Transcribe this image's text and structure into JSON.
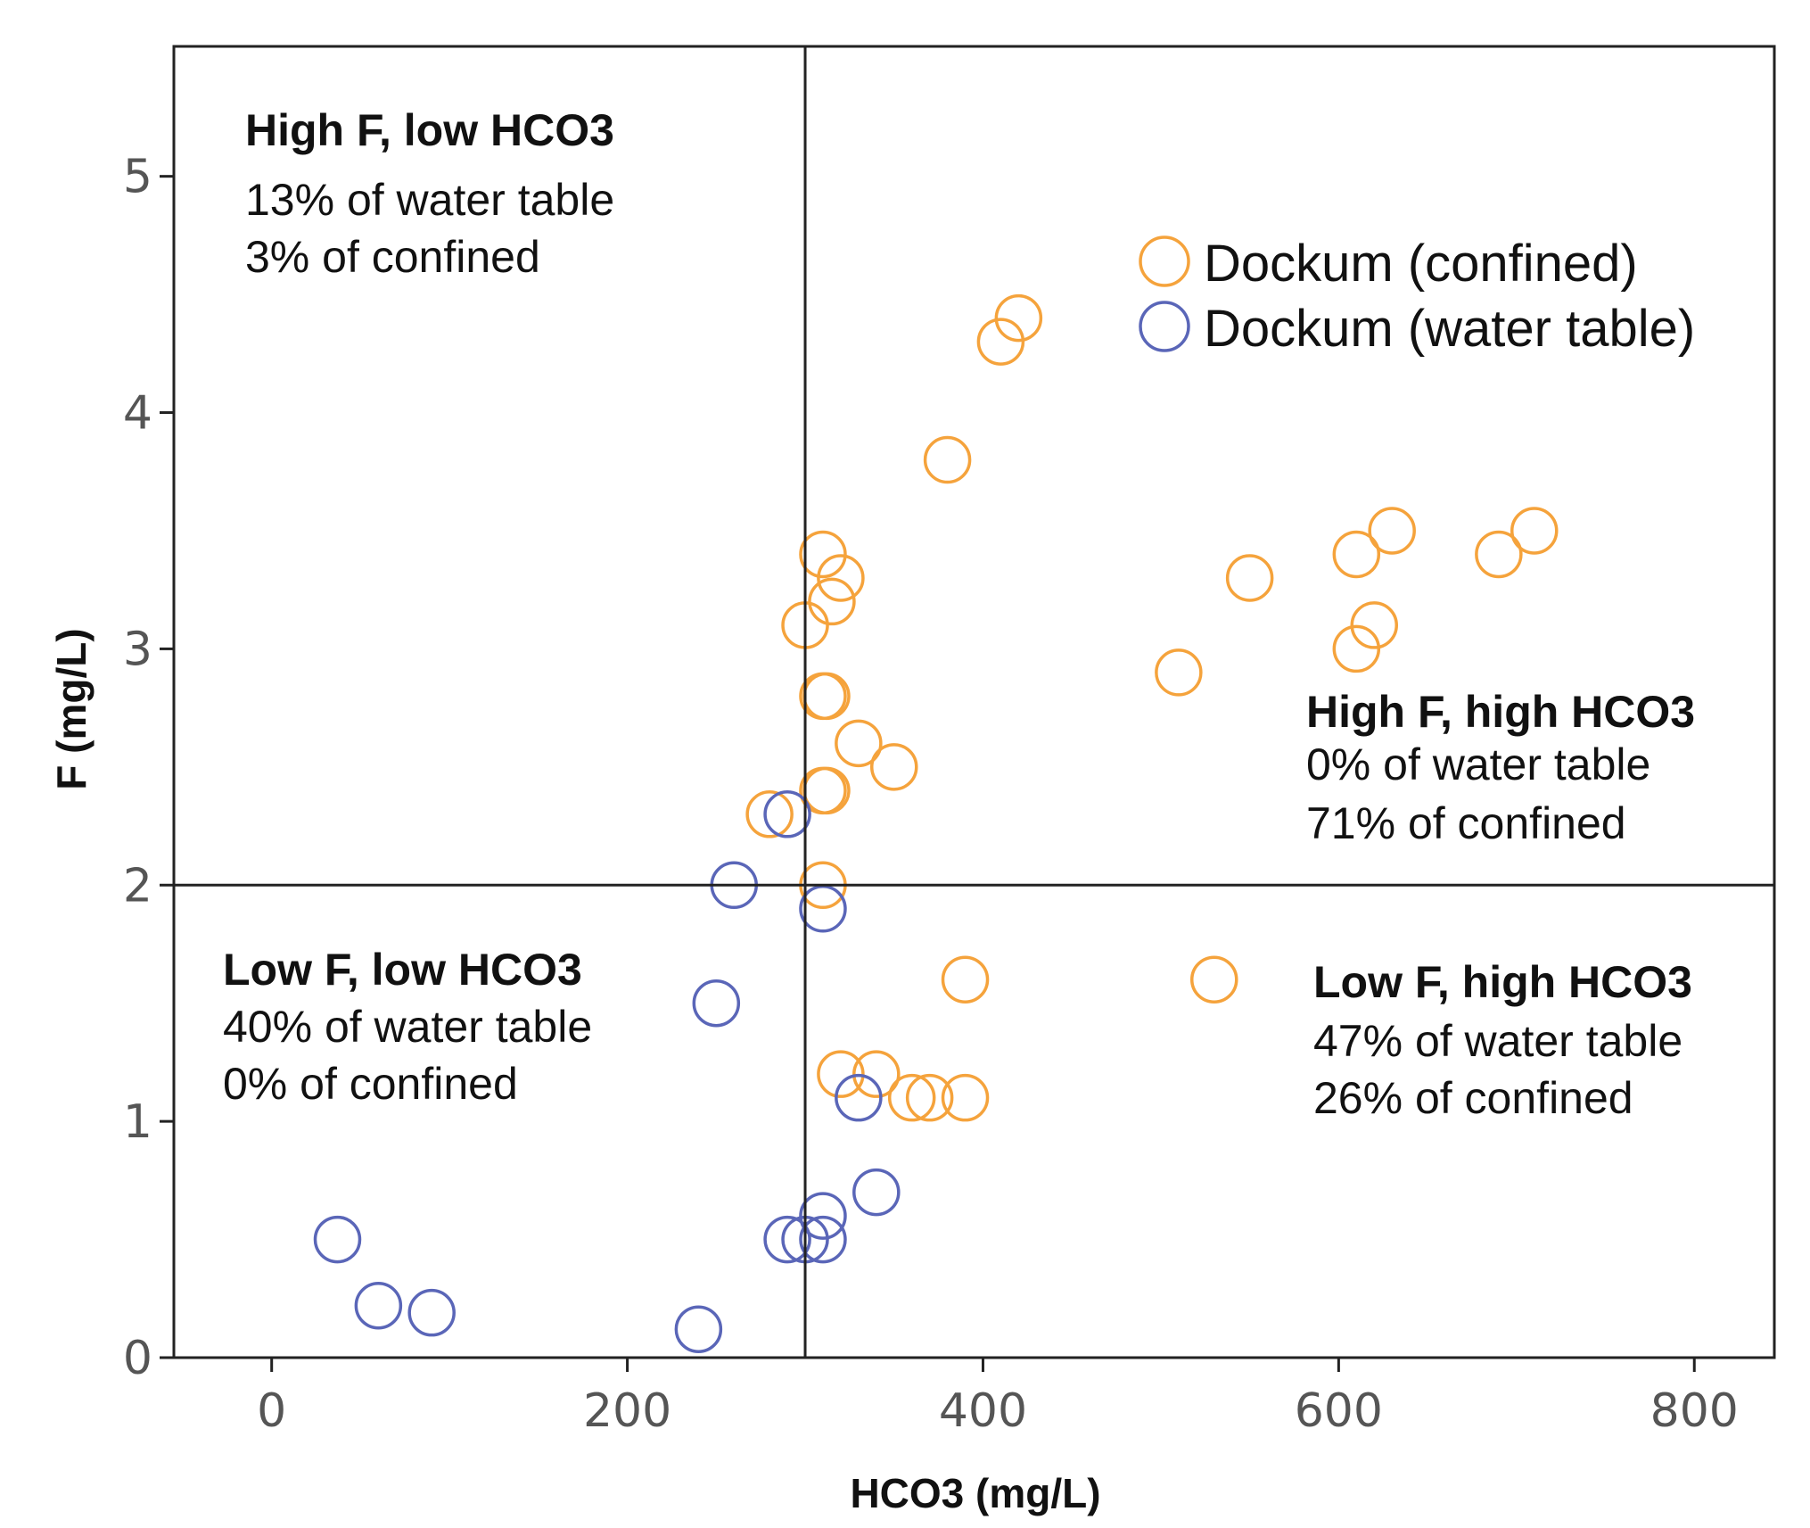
{
  "chart_data": {
    "type": "scatter",
    "title": "",
    "xlabel": "HCO3 (mg/L)",
    "ylabel": "F (mg/L)",
    "xlim": [
      -55,
      845
    ],
    "ylim": [
      0,
      5.55
    ],
    "xticks": [
      0,
      200,
      400,
      600,
      800
    ],
    "yticks": [
      0,
      1,
      2,
      3,
      4,
      5
    ],
    "xtick_labels": [
      "0",
      "200",
      "400",
      "600",
      "800"
    ],
    "ytick_labels": [
      "0",
      "1",
      "2",
      "3",
      "4",
      "5"
    ],
    "grid": false,
    "reference_lines": {
      "x": 300,
      "y": 2
    },
    "legend": {
      "position": "top-right",
      "entries": [
        "Dockum (confined)",
        "Dockum (water table)"
      ]
    },
    "colors": {
      "confined": "#F5A33C",
      "water_table": "#5A66B8",
      "axis": "#222222"
    },
    "series": [
      {
        "name": "Dockum (confined)",
        "points": [
          [
            420,
            4.4
          ],
          [
            410,
            4.3
          ],
          [
            380,
            3.8
          ],
          [
            310,
            3.4
          ],
          [
            320,
            3.3
          ],
          [
            315,
            3.2
          ],
          [
            300,
            3.1
          ],
          [
            310,
            2.8
          ],
          [
            312,
            2.8
          ],
          [
            330,
            2.6
          ],
          [
            350,
            2.5
          ],
          [
            310,
            2.4
          ],
          [
            312,
            2.4
          ],
          [
            280,
            2.3
          ],
          [
            310,
            2.0
          ],
          [
            550,
            3.3
          ],
          [
            610,
            3.4
          ],
          [
            630,
            3.5
          ],
          [
            690,
            3.4
          ],
          [
            710,
            3.5
          ],
          [
            620,
            3.1
          ],
          [
            610,
            3.0
          ],
          [
            510,
            2.9
          ],
          [
            390,
            1.6
          ],
          [
            530,
            1.6
          ],
          [
            320,
            1.2
          ],
          [
            340,
            1.2
          ],
          [
            360,
            1.1
          ],
          [
            370,
            1.1
          ],
          [
            390,
            1.1
          ]
        ]
      },
      {
        "name": "Dockum (water table)",
        "points": [
          [
            290,
            2.3
          ],
          [
            260,
            2.0
          ],
          [
            310,
            1.9
          ],
          [
            250,
            1.5
          ],
          [
            330,
            1.1
          ],
          [
            340,
            0.7
          ],
          [
            310,
            0.6
          ],
          [
            290,
            0.5
          ],
          [
            300,
            0.5
          ],
          [
            310,
            0.5
          ],
          [
            37,
            0.5
          ],
          [
            60,
            0.22
          ],
          [
            90,
            0.19
          ],
          [
            240,
            0.12
          ]
        ]
      }
    ],
    "annotations": {
      "top_left": {
        "title": "High F, low HCO3",
        "lines": [
          "13% of water table",
          "3% of confined"
        ]
      },
      "top_right": {
        "title": "High F, high HCO3",
        "lines": [
          "0% of water table",
          "71% of confined"
        ]
      },
      "bottom_left": {
        "title": "Low F, low HCO3",
        "lines": [
          "40% of water table",
          "0% of confined"
        ]
      },
      "bottom_right": {
        "title": "Low F, high HCO3",
        "lines": [
          "47% of water table",
          "26% of confined"
        ]
      }
    }
  }
}
